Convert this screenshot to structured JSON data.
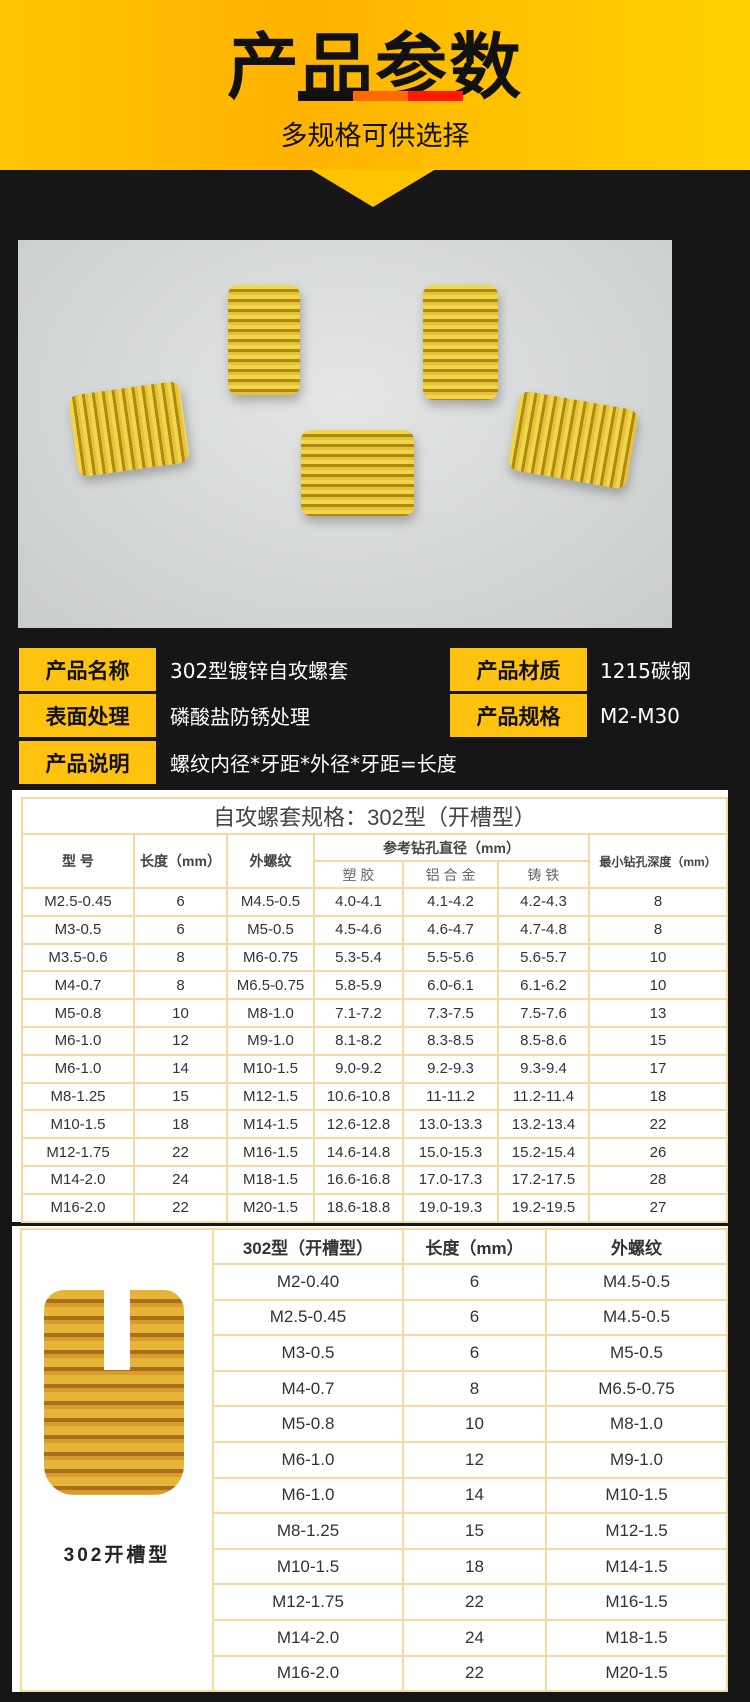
{
  "header": {
    "title": "产品参数",
    "subtitle": "多规格可供选择",
    "bar_colors": [
      "#111111",
      "#ff6a00",
      "#ff1a00"
    ],
    "accent": "#ffc20e"
  },
  "info": [
    {
      "label": "产品名称",
      "value": "302型镀锌自攻螺套"
    },
    {
      "label": "产品材质",
      "value": "1215碳钢"
    },
    {
      "label": "表面处理",
      "value": "磷酸盐防锈处理"
    },
    {
      "label": "产品规格",
      "value": "M2-M30"
    },
    {
      "label": "产品说明",
      "value": "螺纹内径*牙距*外径*牙距=长度"
    }
  ],
  "table1": {
    "title": "自攻螺套规格：302型（开槽型）",
    "headers": {
      "model": "型  号",
      "length": "长度（mm）",
      "thread": "外螺纹",
      "drill": "参考钻孔直径（mm）",
      "plastic": "塑 胶",
      "alloy": "铝 合 金",
      "iron": "铸 铁",
      "depth": "最小钻孔深度（mm）"
    },
    "rows": [
      [
        "M2.5-0.45",
        "6",
        "M4.5-0.5",
        "4.0-4.1",
        "4.1-4.2",
        "4.2-4.3",
        "8"
      ],
      [
        "M3-0.5",
        "6",
        "M5-0.5",
        "4.5-4.6",
        "4.6-4.7",
        "4.7-4.8",
        "8"
      ],
      [
        "M3.5-0.6",
        "8",
        "M6-0.75",
        "5.3-5.4",
        "5.5-5.6",
        "5.6-5.7",
        "10"
      ],
      [
        "M4-0.7",
        "8",
        "M6.5-0.75",
        "5.8-5.9",
        "6.0-6.1",
        "6.1-6.2",
        "10"
      ],
      [
        "M5-0.8",
        "10",
        "M8-1.0",
        "7.1-7.2",
        "7.3-7.5",
        "7.5-7.6",
        "13"
      ],
      [
        "M6-1.0",
        "12",
        "M9-1.0",
        "8.1-8.2",
        "8.3-8.5",
        "8.5-8.6",
        "15"
      ],
      [
        "M6-1.0",
        "14",
        "M10-1.5",
        "9.0-9.2",
        "9.2-9.3",
        "9.3-9.4",
        "17"
      ],
      [
        "M8-1.25",
        "15",
        "M12-1.5",
        "10.6-10.8",
        "11-11.2",
        "11.2-11.4",
        "18"
      ],
      [
        "M10-1.5",
        "18",
        "M14-1.5",
        "12.6-12.8",
        "13.0-13.3",
        "13.2-13.4",
        "22"
      ],
      [
        "M12-1.75",
        "22",
        "M16-1.5",
        "14.6-14.8",
        "15.0-15.3",
        "15.2-15.4",
        "26"
      ],
      [
        "M14-2.0",
        "24",
        "M18-1.5",
        "16.6-16.8",
        "17.0-17.3",
        "17.2-17.5",
        "28"
      ],
      [
        "M16-2.0",
        "22",
        "M20-1.5",
        "18.6-18.8",
        "19.0-19.3",
        "19.2-19.5",
        "27"
      ]
    ]
  },
  "table2": {
    "image_caption": "302开槽型",
    "headers": [
      "302型（开槽型）",
      "长度（mm）",
      "外螺纹"
    ],
    "rows": [
      [
        "M2-0.40",
        "6",
        "M4.5-0.5"
      ],
      [
        "M2.5-0.45",
        "6",
        "M4.5-0.5"
      ],
      [
        "M3-0.5",
        "6",
        "M5-0.5"
      ],
      [
        "M4-0.7",
        "8",
        "M6.5-0.75"
      ],
      [
        "M5-0.8",
        "10",
        "M8-1.0"
      ],
      [
        "M6-1.0",
        "12",
        "M9-1.0"
      ],
      [
        "M6-1.0",
        "14",
        "M10-1.5"
      ],
      [
        "M8-1.25",
        "15",
        "M12-1.5"
      ],
      [
        "M10-1.5",
        "18",
        "M14-1.5"
      ],
      [
        "M12-1.75",
        "22",
        "M16-1.5"
      ],
      [
        "M14-2.0",
        "24",
        "M18-1.5"
      ],
      [
        "M16-2.0",
        "22",
        "M20-1.5"
      ]
    ]
  }
}
